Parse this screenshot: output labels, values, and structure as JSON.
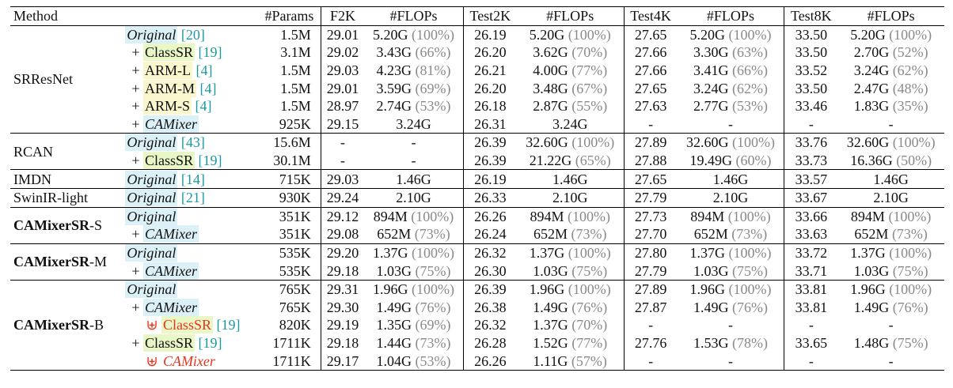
{
  "table": {
    "header": [
      "Method",
      "#Params",
      "F2K",
      "#FLOPs",
      "Test2K",
      "#FLOPs",
      "Test4K",
      "#FLOPs",
      "Test8K",
      "#FLOPs"
    ],
    "groups": [
      {
        "method": "SRResNet",
        "rows": [
          {
            "variant": {
              "name": "Original",
              "cite": "[20]",
              "italic": true,
              "highlight": "#dcf1f7"
            },
            "params": "1.5M",
            "results": [
              [
                "29.01",
                "5.20G",
                "(100%)"
              ],
              [
                "26.19",
                "5.20G",
                "(100%)"
              ],
              [
                "27.65",
                "5.20G",
                "(100%)"
              ],
              [
                "33.50",
                "5.20G",
                "(100%)"
              ]
            ]
          },
          {
            "variant": {
              "prefix": "+",
              "name": "ClassSR",
              "cite": "[19]",
              "italic": false,
              "highlight": "#e9f6c6"
            },
            "params": "3.1M",
            "results": [
              [
                "29.02",
                "3.43G",
                "(66%)"
              ],
              [
                "26.20",
                "3.62G",
                "(70%)"
              ],
              [
                "27.66",
                "3.30G",
                "(63%)"
              ],
              [
                "33.50",
                "2.70G",
                "(52%)"
              ]
            ]
          },
          {
            "variant": {
              "prefix": "+",
              "name": "ARM-L",
              "cite": "[4]",
              "italic": false,
              "highlight": "#faf7cf"
            },
            "params": "1.5M",
            "results": [
              [
                "29.03",
                "4.23G",
                "(81%)"
              ],
              [
                "26.21",
                "4.00G",
                "(77%)"
              ],
              [
                "27.66",
                "3.41G",
                "(66%)"
              ],
              [
                "33.52",
                "3.24G",
                "(62%)"
              ]
            ]
          },
          {
            "variant": {
              "prefix": "+",
              "name": "ARM-M",
              "cite": "[4]",
              "italic": false,
              "highlight": "#faf7cf"
            },
            "params": "1.5M",
            "results": [
              [
                "29.01",
                "3.59G",
                "(69%)"
              ],
              [
                "26.20",
                "3.48G",
                "(67%)"
              ],
              [
                "27.65",
                "3.24G",
                "(62%)"
              ],
              [
                "33.50",
                "2.47G",
                "(48%)"
              ]
            ]
          },
          {
            "variant": {
              "prefix": "+",
              "name": "ARM-S",
              "cite": "[4]",
              "italic": false,
              "highlight": "#faf7cf"
            },
            "params": "1.5M",
            "results": [
              [
                "28.97",
                "2.74G",
                "(53%)"
              ],
              [
                "26.18",
                "2.87G",
                "(55%)"
              ],
              [
                "27.63",
                "2.77G",
                "(53%)"
              ],
              [
                "33.46",
                "1.83G",
                "(35%)"
              ]
            ]
          },
          {
            "variant": {
              "prefix": "+",
              "name": "CAMixer",
              "italic": true,
              "highlight": "#dcf1f7"
            },
            "params": "925K",
            "results": [
              [
                "29.15",
                "3.24G"
              ],
              [
                "26.31",
                "3.24G"
              ],
              [
                "-",
                "-"
              ],
              [
                "-",
                "-"
              ]
            ]
          }
        ]
      },
      {
        "method": "RCAN",
        "rows": [
          {
            "variant": {
              "name": "Original",
              "cite": "[43]",
              "italic": true,
              "highlight": "#dcf1f7"
            },
            "params": "15.6M",
            "results": [
              [
                "-",
                "-"
              ],
              [
                "26.39",
                "32.60G",
                "(100%)"
              ],
              [
                "27.89",
                "32.60G",
                "(100%)"
              ],
              [
                "33.76",
                "32.60G",
                "(100%)"
              ]
            ]
          },
          {
            "variant": {
              "prefix": "+",
              "name": "ClassSR",
              "cite": "[19]",
              "italic": false,
              "highlight": "#e9f6c6"
            },
            "params": "30.1M",
            "results": [
              [
                "-",
                "-"
              ],
              [
                "26.39",
                "21.22G",
                "(65%)"
              ],
              [
                "27.88",
                "19.49G",
                "(60%)"
              ],
              [
                "33.73",
                "16.36G",
                "(50%)"
              ]
            ]
          }
        ]
      },
      {
        "method": "IMDN",
        "rows": [
          {
            "variant": {
              "name": "Original",
              "cite": "[14]",
              "italic": true,
              "highlight": "#dcf1f7"
            },
            "params": "715K",
            "results": [
              [
                "29.03",
                "1.46G"
              ],
              [
                "26.19",
                "1.46G"
              ],
              [
                "27.65",
                "1.46G"
              ],
              [
                "33.57",
                "1.46G"
              ]
            ]
          }
        ]
      },
      {
        "method": "SwinIR-light",
        "rows": [
          {
            "variant": {
              "name": "Original",
              "cite": "[21]",
              "italic": true,
              "highlight": "#dcf1f7"
            },
            "params": "930K",
            "results": [
              [
                "29.24",
                "2.10G"
              ],
              [
                "26.33",
                "2.10G"
              ],
              [
                "27.79",
                "2.10G"
              ],
              [
                "33.67",
                "2.10G"
              ]
            ]
          }
        ]
      },
      {
        "method_bold": "CAMixerSR",
        "method": "-S",
        "rows": [
          {
            "variant": {
              "name": "Original",
              "italic": true,
              "highlight": "#dcf1f7"
            },
            "params": "351K",
            "results": [
              [
                "29.12",
                "894M",
                "(100%)"
              ],
              [
                "26.26",
                "894M",
                "(100%)"
              ],
              [
                "27.73",
                "894M",
                "(100%)"
              ],
              [
                "33.66",
                "894M",
                "(100%)"
              ]
            ]
          },
          {
            "variant": {
              "prefix": "+",
              "name": "CAMixer",
              "italic": true,
              "highlight": "#dcf1f7"
            },
            "params": "351K",
            "results": [
              [
                "29.08",
                "652M",
                "(73%)"
              ],
              [
                "26.24",
                "652M",
                "(73%)"
              ],
              [
                "27.70",
                "652M",
                "(73%)"
              ],
              [
                "33.63",
                "652M",
                "(73%)"
              ]
            ]
          }
        ]
      },
      {
        "method_bold": "CAMixerSR",
        "method": "-M",
        "rows": [
          {
            "variant": {
              "name": "Original",
              "italic": true,
              "highlight": "#dcf1f7"
            },
            "params": "535K",
            "results": [
              [
                "29.20",
                "1.37G",
                "(100%)"
              ],
              [
                "26.32",
                "1.37G",
                "(100%)"
              ],
              [
                "27.80",
                "1.37G",
                "(100%)"
              ],
              [
                "33.72",
                "1.37G",
                "(100%)"
              ]
            ]
          },
          {
            "variant": {
              "prefix": "+",
              "name": "CAMixer",
              "italic": true,
              "highlight": "#dcf1f7"
            },
            "params": "535K",
            "results": [
              [
                "29.18",
                "1.03G",
                "(75%)"
              ],
              [
                "26.30",
                "1.03G",
                "(75%)"
              ],
              [
                "27.79",
                "1.03G",
                "(75%)"
              ],
              [
                "33.71",
                "1.03G",
                "(75%)"
              ]
            ]
          }
        ]
      },
      {
        "method_bold": "CAMixerSR",
        "method": "-B",
        "rows": [
          {
            "variant": {
              "name": "Original",
              "italic": true,
              "highlight": "#dcf1f7"
            },
            "params": "765K",
            "results": [
              [
                "29.31",
                "1.96G",
                "(100%)"
              ],
              [
                "26.39",
                "1.96G",
                "(100%)"
              ],
              [
                "27.89",
                "1.96G",
                "(100%)"
              ],
              [
                "33.81",
                "1.96G",
                "(100%)"
              ]
            ]
          },
          {
            "variant": {
              "prefix": "+",
              "name": "CAMixer",
              "italic": true,
              "highlight": "#dcf1f7"
            },
            "params": "765K",
            "results": [
              [
                "29.30",
                "1.49G",
                "(76%)"
              ],
              [
                "26.38",
                "1.49G",
                "(76%)"
              ],
              [
                "27.87",
                "1.49G",
                "(76%)"
              ],
              [
                "33.81",
                "1.49G",
                "(76%)"
              ]
            ]
          },
          {
            "variant": {
              "prefix": "⊎",
              "name": "ClassSR",
              "cite": "[19]",
              "italic": false,
              "highlight": "#e9f6c6",
              "color": "#e8341c"
            },
            "params": "820K",
            "results": [
              [
                "29.19",
                "1.35G",
                "(69%)"
              ],
              [
                "26.32",
                "1.37G",
                "(70%)"
              ],
              [
                "-",
                "-"
              ],
              [
                "-",
                "-"
              ]
            ]
          },
          {
            "variant": {
              "prefix": "+",
              "name": "ClassSR",
              "cite": "[19]",
              "italic": false,
              "highlight": "#e9f6c6"
            },
            "params": "1711K",
            "results": [
              [
                "29.18",
                "1.44G",
                "(73%)"
              ],
              [
                "26.28",
                "1.52G",
                "(77%)"
              ],
              [
                "27.76",
                "1.53G",
                "(78%)"
              ],
              [
                "33.65",
                "1.48G",
                "(75%)"
              ]
            ]
          },
          {
            "variant": {
              "prefix": "⊎",
              "name": "CAMixer",
              "italic": true,
              "color": "#e8341c"
            },
            "params": "1711K",
            "results": [
              [
                "29.17",
                "1.04G",
                "(53%)"
              ],
              [
                "26.26",
                "1.11G",
                "(57%)"
              ],
              [
                "-",
                "-"
              ],
              [
                "-",
                "-"
              ]
            ]
          }
        ]
      }
    ]
  }
}
